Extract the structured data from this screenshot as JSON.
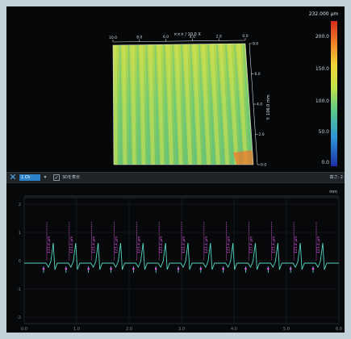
{
  "view3d": {
    "axis_title": "××× / 10.0 X",
    "y_axis_label": "Y: 106.0 mm",
    "x_ticks": [
      "0.0",
      "2.0",
      "4.0",
      "6.0",
      "8.0",
      "10.0"
    ],
    "y_ticks": [
      "0.0",
      "2.0",
      "4.0",
      "6.0",
      "8.0"
    ]
  },
  "colorbar": {
    "max_label": "232.000 µm",
    "ticks": [
      "200.0",
      "150.0",
      "100.0",
      "50.0",
      "0.0"
    ],
    "colors": [
      "#d62b1e",
      "#f07a22",
      "#f2d53a",
      "#c6e545",
      "#57c98a",
      "#2f95d8",
      "#1b2fa6"
    ]
  },
  "toolbar": {
    "selected_label": "1 Ch",
    "dropdown_icon": "▾",
    "checkbox_mark": "✓",
    "checkbox_label": "3Dを表示",
    "right_label": "高さ: 2"
  },
  "profile": {
    "y_unit": "mm",
    "peak_count": 13,
    "peak_labels": [
      "123.4 µm",
      "123.4 µm",
      "123.4 µm",
      "123.4 µm",
      "123.4 µm",
      "123.4 µm",
      "123.4 µm",
      "123.4 µm",
      "123.4 µm",
      "123.4 µm",
      "123.4 µm",
      "123.4 µm",
      "123.4 µm"
    ],
    "x_ticks": [
      "0.0",
      "1.0",
      "2.0",
      "3.0",
      "4.0",
      "5.0",
      "6.0"
    ],
    "y_ticks": [
      "2",
      "1",
      "0",
      "-1",
      "-2"
    ]
  }
}
